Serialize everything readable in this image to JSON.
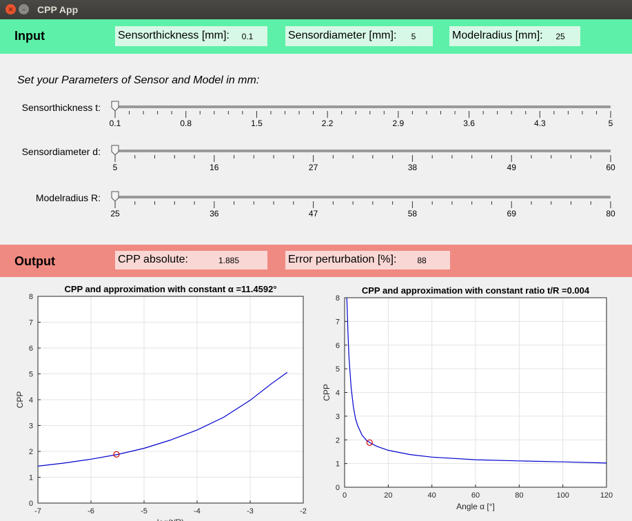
{
  "window": {
    "title": "CPP App",
    "close_glyph": "×",
    "min_glyph": "–"
  },
  "input": {
    "header": "Input",
    "fields": [
      {
        "label": "Sensorthickness [mm]:",
        "value": "0.1"
      },
      {
        "label": "Sensordiameter [mm]:",
        "value": "5"
      },
      {
        "label": "Modelradius [mm]:",
        "value": "25"
      }
    ],
    "instruction": "Set your Parameters of Sensor and Model in mm:",
    "sliders": [
      {
        "label": "Sensorthickness t:",
        "min": 0.1,
        "max": 5,
        "value": 0.1,
        "ticks": [
          "0.1",
          "0.8",
          "1.5",
          "2.2",
          "2.9",
          "3.6",
          "4.3",
          "5"
        ]
      },
      {
        "label": "Sensordiameter d:",
        "min": 5,
        "max": 60,
        "value": 5,
        "ticks": [
          "5",
          "16",
          "27",
          "38",
          "49",
          "60"
        ]
      },
      {
        "label": "Modelradius R:",
        "min": 25,
        "max": 80,
        "value": 25,
        "ticks": [
          "25",
          "36",
          "47",
          "58",
          "69",
          "80"
        ]
      }
    ]
  },
  "output": {
    "header": "Output",
    "fields": [
      {
        "label": "CPP absolute:",
        "value": "1.885"
      },
      {
        "label": "Error perturbation [%]:",
        "value": "88"
      }
    ]
  },
  "chart_data": [
    {
      "type": "line",
      "title": "CPP  and  approximation  with  constant  α  =11.4592°",
      "xlabel": "log(t/R)",
      "ylabel": "CPP",
      "xlim": [
        -7,
        -2
      ],
      "ylim": [
        0,
        8
      ],
      "xticks": [
        "-7",
        "-6",
        "-5",
        "-4",
        "-3",
        "-2"
      ],
      "yticks": [
        "0",
        "1",
        "2",
        "3",
        "4",
        "5",
        "6",
        "7",
        "8"
      ],
      "grid": true,
      "series_color": "#0000cc",
      "marker_color": "#cc0000",
      "x": [
        -7,
        -6.5,
        -6,
        -5.5,
        -5,
        -4.5,
        -4,
        -3.5,
        -3,
        -2.6,
        -2.3
      ],
      "y": [
        1.43,
        1.55,
        1.7,
        1.88,
        2.12,
        2.44,
        2.83,
        3.32,
        3.98,
        4.62,
        5.06
      ],
      "marker": {
        "x": -5.52,
        "y": 1.885
      }
    },
    {
      "type": "line",
      "title": "CPP and approximation with constant ratio t/R =0.004",
      "xlabel": "Angle  α  [°]",
      "ylabel": "CPP",
      "xlim": [
        0,
        120
      ],
      "ylim": [
        0,
        8
      ],
      "xticks": [
        "0",
        "20",
        "40",
        "60",
        "80",
        "100",
        "120"
      ],
      "yticks": [
        "0",
        "1",
        "2",
        "3",
        "4",
        "5",
        "6",
        "7",
        "8"
      ],
      "grid": true,
      "series_color": "#0000cc",
      "marker_color": "#cc0000",
      "x": [
        1,
        1.5,
        2,
        3,
        4,
        5,
        6,
        8,
        10,
        12,
        15,
        20,
        30,
        40,
        60,
        80,
        100,
        120
      ],
      "y": [
        8,
        6.6,
        5.5,
        4.2,
        3.4,
        2.9,
        2.6,
        2.2,
        1.98,
        1.86,
        1.72,
        1.56,
        1.38,
        1.27,
        1.16,
        1.11,
        1.07,
        1.02
      ],
      "marker": {
        "x": 11.46,
        "y": 1.885
      }
    }
  ]
}
